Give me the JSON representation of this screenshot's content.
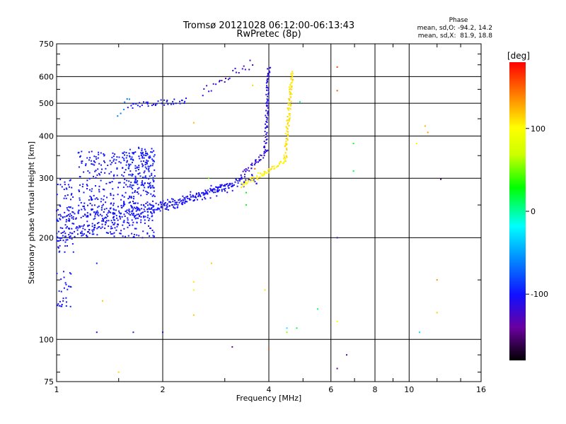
{
  "chart_data": {
    "type": "scatter",
    "title": "Tromsø 20121028 06:12:00-06:13:43",
    "subtitle": "RwPretec (8p)",
    "xlabel": "Frequency [MHz]",
    "ylabel": "Stationary phase Virtual Height [km]",
    "x_scale": "log",
    "y_scale": "log",
    "xlim": [
      1,
      16
    ],
    "ylim": [
      75,
      750
    ],
    "x_ticks": [
      1,
      2,
      4,
      6,
      8,
      10,
      16
    ],
    "y_ticks": [
      75,
      100,
      200,
      300,
      400,
      500,
      600,
      750
    ],
    "grid": true,
    "phase_box": {
      "title": "Phase",
      "line1": "mean, sd,O: -94.2, 14.2",
      "line2": "mean, sd,X:  81.9, 18.8"
    },
    "colorbar": {
      "label": "[deg]",
      "ticks": [
        100,
        0,
        -100
      ],
      "range": [
        -180,
        180
      ]
    },
    "traces": [
      {
        "mode": "curve",
        "phase": -100,
        "x_start": 1.0,
        "x_end": 3.7,
        "y_start": 200,
        "y_end": 300,
        "count": 220,
        "jitter": 0.04
      },
      {
        "mode": "curve",
        "phase": -100,
        "x_start": 1.0,
        "x_end": 2.0,
        "y_start": 230,
        "y_end": 250,
        "count": 90,
        "jitter": 0.03
      },
      {
        "mode": "curve",
        "phase": -105,
        "x_start": 2.0,
        "x_end": 3.2,
        "y_start": 248,
        "y_end": 290,
        "count": 90,
        "jitter": 0.02
      },
      {
        "mode": "blob",
        "phase": -100,
        "x_start": 1.15,
        "x_end": 1.9,
        "y_start": 200,
        "y_end": 360,
        "count": 420
      },
      {
        "mode": "blob",
        "phase": -95,
        "x_start": 1.55,
        "x_end": 1.9,
        "y_start": 280,
        "y_end": 370,
        "count": 120
      },
      {
        "mode": "blob",
        "phase": -100,
        "x_start": 1.0,
        "x_end": 1.12,
        "y_start": 180,
        "y_end": 300,
        "count": 80
      },
      {
        "mode": "blob",
        "phase": -100,
        "x_start": 1.0,
        "x_end": 1.1,
        "y_start": 125,
        "y_end": 160,
        "count": 28
      },
      {
        "mode": "curve",
        "phase": -100,
        "x_start": 1.6,
        "x_end": 2.35,
        "y_start": 490,
        "y_end": 510,
        "count": 40,
        "jitter": 0.02
      },
      {
        "mode": "curve",
        "phase": -115,
        "x_start": 3.3,
        "x_end": 3.95,
        "y_start": 300,
        "y_end": 360,
        "count": 40,
        "jitter": 0.02
      },
      {
        "mode": "curve",
        "phase": -110,
        "x_start": 3.9,
        "x_end": 4.0,
        "y_start": 360,
        "y_end": 640,
        "count": 70,
        "jitter": 0.01
      },
      {
        "mode": "curve",
        "phase": -120,
        "x_start": 2.6,
        "x_end": 3.6,
        "y_start": 540,
        "y_end": 660,
        "count": 24,
        "jitter": 0.03
      },
      {
        "mode": "curve",
        "phase": 105,
        "x_start": 3.35,
        "x_end": 4.45,
        "y_start": 285,
        "y_end": 340,
        "count": 60,
        "jitter": 0.02
      },
      {
        "mode": "curve",
        "phase": 110,
        "x_start": 4.45,
        "x_end": 4.65,
        "y_start": 340,
        "y_end": 620,
        "count": 90,
        "jitter": 0.01
      },
      {
        "mode": "curve",
        "phase": -60,
        "x_start": 1.5,
        "x_end": 1.6,
        "y_start": 460,
        "y_end": 520,
        "count": 6,
        "jitter": 0.02
      }
    ],
    "scatter_points": [
      {
        "x": 1.3,
        "y": 105,
        "phase": -110
      },
      {
        "x": 1.65,
        "y": 105,
        "phase": -100
      },
      {
        "x": 2.0,
        "y": 105,
        "phase": -105
      },
      {
        "x": 1.5,
        "y": 80,
        "phase": 110
      },
      {
        "x": 1.35,
        "y": 130,
        "phase": 115
      },
      {
        "x": 1.3,
        "y": 168,
        "phase": -100
      },
      {
        "x": 2.45,
        "y": 148,
        "phase": 110
      },
      {
        "x": 2.45,
        "y": 140,
        "phase": 100
      },
      {
        "x": 2.45,
        "y": 118,
        "phase": 120
      },
      {
        "x": 2.45,
        "y": 438,
        "phase": 120
      },
      {
        "x": 2.75,
        "y": 168,
        "phase": 110
      },
      {
        "x": 3.15,
        "y": 95,
        "phase": -140
      },
      {
        "x": 4.0,
        "y": 94,
        "phase": 150
      },
      {
        "x": 3.9,
        "y": 140,
        "phase": 110
      },
      {
        "x": 3.6,
        "y": 565,
        "phase": 110
      },
      {
        "x": 4.5,
        "y": 105,
        "phase": 60
      },
      {
        "x": 4.5,
        "y": 108,
        "phase": -20
      },
      {
        "x": 4.8,
        "y": 108,
        "phase": 10
      },
      {
        "x": 5.5,
        "y": 123,
        "phase": 10
      },
      {
        "x": 6.25,
        "y": 640,
        "phase": 160
      },
      {
        "x": 6.25,
        "y": 545,
        "phase": 160
      },
      {
        "x": 6.25,
        "y": 200,
        "phase": -120
      },
      {
        "x": 6.25,
        "y": 113,
        "phase": 100
      },
      {
        "x": 6.25,
        "y": 82,
        "phase": -130
      },
      {
        "x": 6.95,
        "y": 380,
        "phase": 20
      },
      {
        "x": 6.95,
        "y": 315,
        "phase": 20
      },
      {
        "x": 6.65,
        "y": 90,
        "phase": -130
      },
      {
        "x": 10.5,
        "y": 380,
        "phase": 110
      },
      {
        "x": 10.7,
        "y": 105,
        "phase": -30
      },
      {
        "x": 11.1,
        "y": 428,
        "phase": 120
      },
      {
        "x": 11.3,
        "y": 410,
        "phase": 125
      },
      {
        "x": 12.0,
        "y": 150,
        "phase": 130
      },
      {
        "x": 12.0,
        "y": 120,
        "phase": 110
      },
      {
        "x": 12.3,
        "y": 298,
        "phase": -160
      },
      {
        "x": 4.9,
        "y": 505,
        "phase": 0
      },
      {
        "x": 3.45,
        "y": 250,
        "phase": 30
      },
      {
        "x": 2.7,
        "y": 300,
        "phase": 50
      },
      {
        "x": 3.45,
        "y": 272,
        "phase": 30
      },
      {
        "x": 3.9,
        "y": 400,
        "phase": 120
      },
      {
        "x": 3.65,
        "y": 320,
        "phase": 150
      }
    ]
  }
}
